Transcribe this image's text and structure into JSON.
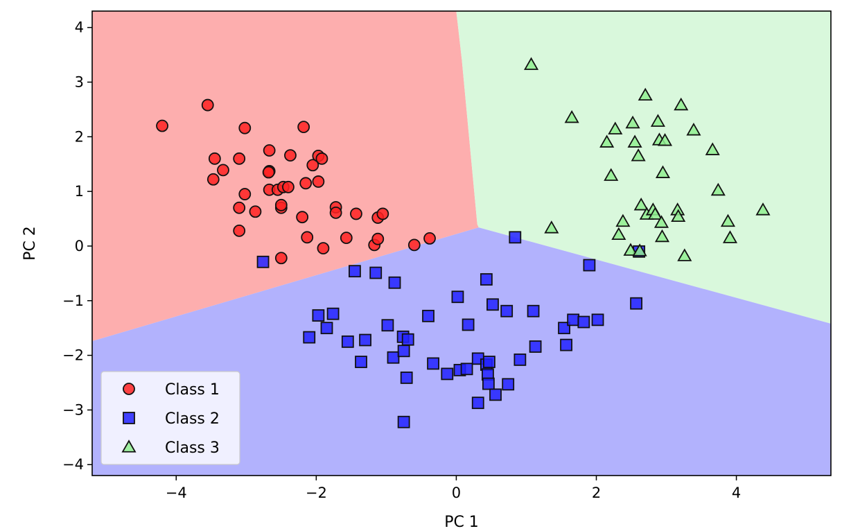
{
  "chart_data": {
    "type": "scatter",
    "title": "",
    "xlabel": "PC 1",
    "ylabel": "PC 2",
    "xlim": [
      -5.2,
      5.35
    ],
    "ylim": [
      -4.2,
      4.3
    ],
    "xticks": [
      -4,
      -2,
      0,
      2,
      4
    ],
    "yticks": [
      -4,
      -3,
      -2,
      -1,
      0,
      1,
      2,
      3,
      4
    ],
    "grid": false,
    "legend_position": "lower-left",
    "decision_regions": [
      {
        "class": "Class 1",
        "color": "#fdaeae",
        "polygon": [
          [
            -5.2,
            4.3
          ],
          [
            0.0,
            4.3
          ],
          [
            0.08,
            3.4
          ],
          [
            0.3,
            0.4
          ],
          [
            0.32,
            0.34
          ],
          [
            -5.2,
            -1.74
          ]
        ]
      },
      {
        "class": "Class 3",
        "color": "#d9f8dc",
        "polygon": [
          [
            0.0,
            4.3
          ],
          [
            5.35,
            4.3
          ],
          [
            5.35,
            -1.42
          ],
          [
            0.32,
            0.34
          ],
          [
            0.3,
            0.4
          ],
          [
            0.08,
            3.4
          ]
        ]
      },
      {
        "class": "Class 2",
        "color": "#b2b2fd",
        "polygon": [
          [
            -5.2,
            -1.74
          ],
          [
            0.32,
            0.34
          ],
          [
            5.35,
            -1.42
          ],
          [
            5.35,
            -4.2
          ],
          [
            -5.2,
            -4.2
          ]
        ]
      }
    ],
    "series": [
      {
        "name": "Class 1",
        "marker": "circle",
        "color": "#ff2222",
        "points": [
          [
            -4.2,
            2.2
          ],
          [
            -3.55,
            2.58
          ],
          [
            -3.45,
            1.6
          ],
          [
            -3.47,
            1.22
          ],
          [
            -3.33,
            1.39
          ],
          [
            -3.1,
            1.6
          ],
          [
            -3.02,
            2.16
          ],
          [
            -3.02,
            0.95
          ],
          [
            -3.1,
            0.7
          ],
          [
            -3.1,
            0.28
          ],
          [
            -2.87,
            0.63
          ],
          [
            -2.67,
            1.75
          ],
          [
            -2.67,
            1.37
          ],
          [
            -2.68,
            1.35
          ],
          [
            -2.67,
            1.03
          ],
          [
            -2.55,
            1.03
          ],
          [
            -2.5,
            0.7
          ],
          [
            -2.5,
            0.75
          ],
          [
            -2.47,
            1.08
          ],
          [
            -2.4,
            1.08
          ],
          [
            -2.37,
            1.66
          ],
          [
            -2.2,
            0.53
          ],
          [
            -2.18,
            2.18
          ],
          [
            -2.15,
            1.15
          ],
          [
            -2.13,
            0.16
          ],
          [
            -2.05,
            1.48
          ],
          [
            -1.97,
            1.65
          ],
          [
            -1.97,
            1.18
          ],
          [
            -1.92,
            1.6
          ],
          [
            -1.9,
            -0.04
          ],
          [
            -1.72,
            0.71
          ],
          [
            -1.72,
            0.61
          ],
          [
            -1.57,
            0.15
          ],
          [
            -1.43,
            0.59
          ],
          [
            -1.17,
            0.02
          ],
          [
            -1.12,
            0.52
          ],
          [
            -1.12,
            0.13
          ],
          [
            -1.05,
            0.59
          ],
          [
            -0.6,
            0.02
          ],
          [
            -0.38,
            0.14
          ],
          [
            -2.5,
            -0.22
          ]
        ]
      },
      {
        "name": "Class 2",
        "marker": "square",
        "color": "#2222ff",
        "points": [
          [
            -2.76,
            -0.29
          ],
          [
            -2.1,
            -1.67
          ],
          [
            -1.97,
            -1.27
          ],
          [
            -1.85,
            -1.5
          ],
          [
            -1.76,
            -1.24
          ],
          [
            -1.55,
            -1.75
          ],
          [
            -1.45,
            -0.46
          ],
          [
            -1.36,
            -2.12
          ],
          [
            -1.3,
            -1.72
          ],
          [
            -1.15,
            -0.49
          ],
          [
            -0.98,
            -1.45
          ],
          [
            -0.9,
            -2.04
          ],
          [
            -0.88,
            -0.67
          ],
          [
            -0.75,
            -1.92
          ],
          [
            -0.76,
            -1.66
          ],
          [
            -0.75,
            -3.22
          ],
          [
            -0.69,
            -1.71
          ],
          [
            -0.71,
            -2.41
          ],
          [
            -0.4,
            -1.28
          ],
          [
            -0.33,
            -2.15
          ],
          [
            -0.13,
            -2.34
          ],
          [
            0.02,
            -0.93
          ],
          [
            0.05,
            -2.27
          ],
          [
            0.15,
            -2.25
          ],
          [
            0.17,
            -1.44
          ],
          [
            0.31,
            -2.06
          ],
          [
            0.31,
            -2.87
          ],
          [
            0.43,
            -0.61
          ],
          [
            0.43,
            -2.17
          ],
          [
            0.45,
            -2.35
          ],
          [
            0.46,
            -2.52
          ],
          [
            0.47,
            -2.12
          ],
          [
            0.52,
            -1.07
          ],
          [
            0.56,
            -2.72
          ],
          [
            0.72,
            -1.19
          ],
          [
            0.74,
            -2.53
          ],
          [
            0.84,
            0.16
          ],
          [
            0.91,
            -2.08
          ],
          [
            1.1,
            -1.19
          ],
          [
            1.13,
            -1.84
          ],
          [
            1.54,
            -1.5
          ],
          [
            1.57,
            -1.81
          ],
          [
            1.67,
            -1.35
          ],
          [
            1.82,
            -1.39
          ],
          [
            1.9,
            -0.35
          ],
          [
            2.02,
            -1.35
          ],
          [
            2.57,
            -1.05
          ],
          [
            2.61,
            -0.1
          ]
        ]
      },
      {
        "name": "Class 3",
        "marker": "triangle",
        "color": "#90ee90",
        "points": [
          [
            1.07,
            3.32
          ],
          [
            1.36,
            0.33
          ],
          [
            1.65,
            2.35
          ],
          [
            2.15,
            1.9
          ],
          [
            2.21,
            1.29
          ],
          [
            2.27,
            2.14
          ],
          [
            2.32,
            0.21
          ],
          [
            2.38,
            0.45
          ],
          [
            2.49,
            -0.08
          ],
          [
            2.52,
            2.25
          ],
          [
            2.55,
            1.9
          ],
          [
            2.6,
            1.65
          ],
          [
            2.64,
            0.75
          ],
          [
            2.7,
            2.76
          ],
          [
            2.72,
            0.58
          ],
          [
            2.81,
            0.66
          ],
          [
            2.84,
            0.58
          ],
          [
            2.88,
            2.28
          ],
          [
            2.9,
            1.94
          ],
          [
            2.93,
            0.43
          ],
          [
            2.94,
            0.17
          ],
          [
            2.95,
            1.34
          ],
          [
            2.98,
            1.93
          ],
          [
            3.16,
            0.66
          ],
          [
            3.17,
            0.54
          ],
          [
            3.21,
            2.58
          ],
          [
            3.26,
            -0.18
          ],
          [
            3.39,
            2.12
          ],
          [
            3.66,
            1.76
          ],
          [
            3.74,
            1.02
          ],
          [
            3.88,
            0.45
          ],
          [
            3.91,
            0.15
          ],
          [
            4.38,
            0.66
          ],
          [
            2.62,
            -0.09
          ]
        ]
      }
    ],
    "legend": [
      {
        "label": "Class 1",
        "marker": "circle",
        "color": "#ff2222"
      },
      {
        "label": "Class 2",
        "marker": "square",
        "color": "#2222ff"
      },
      {
        "label": "Class 3",
        "marker": "triangle",
        "color": "#90ee90"
      }
    ]
  }
}
